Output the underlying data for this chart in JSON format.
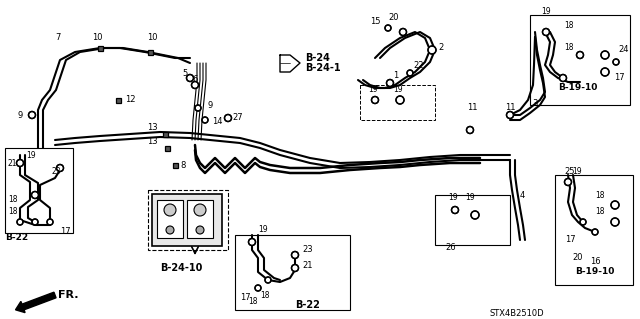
{
  "bg_color": "#ffffff",
  "part_code": "STX4B2510D",
  "figsize": [
    6.4,
    3.19
  ],
  "dpi": 100,
  "xlim": [
    0,
    640
  ],
  "ylim": [
    319,
    0
  ]
}
